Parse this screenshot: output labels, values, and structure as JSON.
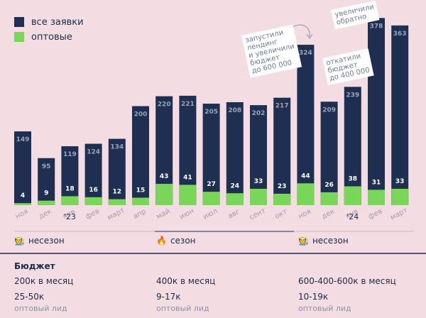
{
  "legend": {
    "total_label": "все заявки",
    "wholesale_label": "оптовые",
    "total_color": "#1f2f52",
    "wholesale_color": "#7ad659"
  },
  "chart_data": {
    "type": "bar",
    "categories": [
      "ноя",
      "дек",
      "янв",
      "фев",
      "март",
      "апр",
      "май",
      "июн",
      "июл",
      "авг",
      "сент",
      "окт",
      "ноя",
      "дек",
      "янв",
      "фев",
      "март"
    ],
    "year_marks": [
      {
        "index": 2,
        "label": "'23"
      },
      {
        "index": 14,
        "label": "'24"
      }
    ],
    "series": [
      {
        "name": "все заявки",
        "values": [
          149,
          95,
          119,
          124,
          134,
          200,
          220,
          221,
          205,
          208,
          202,
          217,
          324,
          209,
          239,
          378,
          363
        ]
      },
      {
        "name": "оптовые",
        "values": [
          4,
          9,
          18,
          16,
          12,
          15,
          43,
          41,
          27,
          24,
          33,
          23,
          44,
          26,
          38,
          31,
          33
        ]
      }
    ],
    "ylim": [
      0,
      380
    ]
  },
  "annotations": [
    {
      "text": "запустили\nлендинг\nи увеличили\nбюджет\nдо 600 000"
    },
    {
      "text": "откатили\nбюджет\nдо 400 000"
    },
    {
      "text": "увеличили\nобратно"
    }
  ],
  "seasons": [
    {
      "icon": "🧑‍🌾",
      "label": "несезон"
    },
    {
      "icon": "🔥",
      "label": "сезон"
    },
    {
      "icon": "🧑‍🌾",
      "label": "несезон"
    }
  ],
  "budget": {
    "title": "Бюджет",
    "columns": [
      {
        "amount": "200к в месяц",
        "price": "25-50к",
        "unit": "оптовый лид"
      },
      {
        "amount": "400к в месяц",
        "price": "9-17к",
        "unit": "оптовый лид"
      },
      {
        "amount": "600-400-600к в месяц",
        "price": "10-19к",
        "unit": "оптовый лид"
      }
    ]
  }
}
